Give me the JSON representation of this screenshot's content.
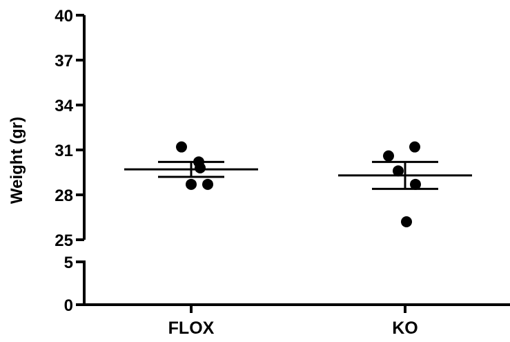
{
  "chart_data": {
    "type": "scatter",
    "title": "",
    "xlabel": "",
    "ylabel": "Weight (gr)",
    "categories": [
      "FLOX",
      "KO"
    ],
    "axis_break": {
      "lower_segment": [
        0,
        5
      ],
      "upper_segment": [
        25,
        40
      ]
    },
    "y_ticks_upper": [
      25,
      28,
      31,
      34,
      37,
      40
    ],
    "y_ticks_lower": [
      0,
      5
    ],
    "y_tick_labels_upper": [
      "25",
      "28",
      "31",
      "34",
      "37",
      "40"
    ],
    "y_tick_labels_lower": [
      "0",
      "5"
    ],
    "series": [
      {
        "category": "FLOX",
        "points": [
          31.2,
          29.8,
          30.2,
          28.7,
          28.7
        ],
        "mean": 29.7,
        "sem_low": 29.2,
        "sem_high": 30.2
      },
      {
        "category": "KO",
        "points": [
          30.6,
          31.2,
          29.6,
          28.7,
          26.2
        ],
        "mean": 29.3,
        "sem_low": 28.4,
        "sem_high": 30.2
      }
    ],
    "grid": false,
    "legend": "none",
    "marker_color": "#000000"
  }
}
